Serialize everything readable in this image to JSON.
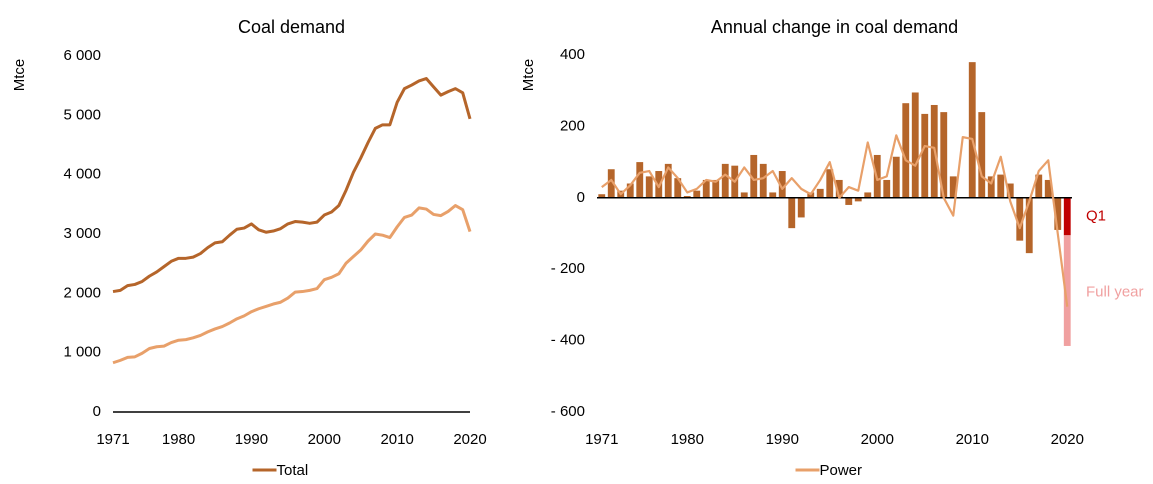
{
  "chart_data": [
    {
      "type": "line",
      "title": "Coal demand",
      "y_label": "Mtce",
      "x": [
        1971,
        1972,
        1973,
        1974,
        1975,
        1976,
        1977,
        1978,
        1979,
        1980,
        1981,
        1982,
        1983,
        1984,
        1985,
        1986,
        1987,
        1988,
        1989,
        1990,
        1991,
        1992,
        1993,
        1994,
        1995,
        1996,
        1997,
        1998,
        1999,
        2000,
        2001,
        2002,
        2003,
        2004,
        2005,
        2006,
        2007,
        2008,
        2009,
        2010,
        2011,
        2012,
        2013,
        2014,
        2015,
        2016,
        2017,
        2018,
        2019,
        2020
      ],
      "xlim": [
        1971,
        2020
      ],
      "xticks": [
        1971,
        1980,
        1990,
        2000,
        2010,
        2020
      ],
      "ylim": [
        0,
        6000
      ],
      "yticks": [
        0,
        {
          "value": 1000,
          "label": "1 000"
        },
        {
          "value": 2000,
          "label": "2 000"
        },
        {
          "value": 3000,
          "label": "3 000"
        },
        {
          "value": 4000,
          "label": "4 000"
        },
        {
          "value": 5000,
          "label": "5 000"
        },
        {
          "value": 6000,
          "label": "6 000"
        }
      ],
      "series": [
        {
          "name": "Total",
          "color": "#b5652a",
          "values": [
            2030,
            2050,
            2130,
            2150,
            2200,
            2290,
            2360,
            2450,
            2540,
            2590,
            2590,
            2610,
            2670,
            2770,
            2850,
            2870,
            2980,
            3080,
            3100,
            3170,
            3070,
            3030,
            3050,
            3090,
            3170,
            3210,
            3200,
            3180,
            3200,
            3320,
            3370,
            3480,
            3740,
            4040,
            4280,
            4540,
            4780,
            4840,
            4840,
            5220,
            5450,
            5510,
            5580,
            5620,
            5480,
            5340,
            5400,
            5450,
            5380,
            4940
          ]
        },
        {
          "color": "#e8a06a",
          "values": [
            830,
            870,
            920,
            930,
            990,
            1070,
            1100,
            1110,
            1170,
            1210,
            1220,
            1250,
            1290,
            1350,
            1400,
            1440,
            1500,
            1570,
            1620,
            1690,
            1740,
            1780,
            1820,
            1850,
            1920,
            2020,
            2030,
            2050,
            2080,
            2230,
            2270,
            2330,
            2510,
            2620,
            2730,
            2880,
            3000,
            2980,
            2940,
            3120,
            3280,
            3320,
            3440,
            3420,
            3330,
            3310,
            3380,
            3480,
            3410,
            3040
          ]
        }
      ]
    },
    {
      "type": "combo",
      "title": "Annual change in coal demand",
      "y_label": "Mtce",
      "x": [
        1971,
        1972,
        1973,
        1974,
        1975,
        1976,
        1977,
        1978,
        1979,
        1980,
        1981,
        1982,
        1983,
        1984,
        1985,
        1986,
        1987,
        1988,
        1989,
        1990,
        1991,
        1992,
        1993,
        1994,
        1995,
        1996,
        1997,
        1998,
        1999,
        2000,
        2001,
        2002,
        2003,
        2004,
        2005,
        2006,
        2007,
        2008,
        2009,
        2010,
        2011,
        2012,
        2013,
        2014,
        2015,
        2016,
        2017,
        2018,
        2019,
        2020
      ],
      "xlim": [
        1970.5,
        2020.5
      ],
      "xticks": [
        1971,
        1980,
        1990,
        2000,
        2010,
        2020
      ],
      "ylim": [
        -600,
        400
      ],
      "yticks": [
        {
          "value": -600,
          "label": "- 600"
        },
        {
          "value": -400,
          "label": "- 400"
        },
        {
          "value": -200,
          "label": "- 200"
        },
        0,
        200,
        400
      ],
      "series": [
        {
          "type": "bar",
          "color": "#b5652a",
          "values": [
            10,
            80,
            20,
            40,
            100,
            60,
            75,
            95,
            55,
            5,
            20,
            50,
            50,
            95,
            90,
            15,
            120,
            95,
            15,
            75,
            -85,
            -55,
            15,
            25,
            80,
            50,
            -20,
            -10,
            15,
            120,
            50,
            115,
            265,
            295,
            235,
            260,
            240,
            60,
            0,
            380,
            240,
            60,
            65,
            40,
            -120,
            -155,
            65,
            50,
            -90,
            null
          ]
        },
        {
          "type": "line",
          "name": "Power",
          "color": "#e8a06a",
          "values": [
            30,
            50,
            10,
            35,
            70,
            75,
            30,
            85,
            55,
            15,
            25,
            50,
            45,
            65,
            45,
            85,
            50,
            55,
            75,
            25,
            55,
            25,
            10,
            50,
            100,
            0,
            30,
            20,
            155,
            50,
            60,
            175,
            105,
            90,
            145,
            140,
            0,
            -50,
            170,
            165,
            60,
            40,
            115,
            -10,
            -85,
            -10,
            75,
            105,
            -100,
            -305
          ]
        }
      ],
      "estimate": {
        "x": 2020,
        "segments": [
          {
            "label": "Q1",
            "value": -105,
            "color": "#c00000"
          },
          {
            "label": "Full year",
            "value": -310,
            "color": "#f0a0a0"
          }
        ]
      }
    }
  ]
}
